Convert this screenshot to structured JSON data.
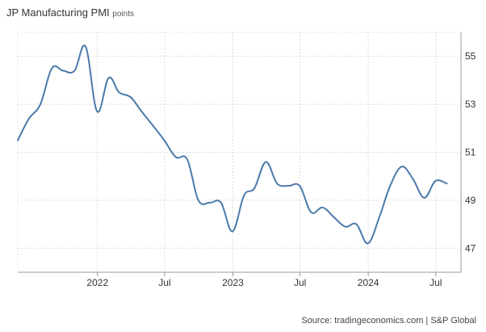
{
  "title": "JP Manufacturing PMI",
  "subtitle": "points",
  "source": "Source: tradingeconomics.com | S&P Global",
  "chart_data": {
    "type": "line",
    "title": "JP Manufacturing PMI",
    "ylabel": "points",
    "ylim": [
      46.0,
      56.0
    ],
    "yticks": [
      47,
      49,
      51,
      53,
      55
    ],
    "xrange": [
      "2021-05-31",
      "2024-09-07"
    ],
    "xticks": [
      {
        "date": "2022-01-01",
        "label": "2022"
      },
      {
        "date": "2022-07-01",
        "label": "Jul"
      },
      {
        "date": "2023-01-01",
        "label": "2023"
      },
      {
        "date": "2023-07-01",
        "label": "Jul"
      },
      {
        "date": "2024-01-01",
        "label": "2024"
      },
      {
        "date": "2024-07-01",
        "label": "Jul"
      }
    ],
    "grid": true,
    "line_color": "#4a7aab",
    "series": [
      {
        "values": [
          {
            "x": "2021-05-31",
            "y": 51.5
          },
          {
            "x": "2021-06-30",
            "y": 52.4
          },
          {
            "x": "2021-07-31",
            "y": 53.0
          },
          {
            "x": "2021-08-31",
            "y": 54.5
          },
          {
            "x": "2021-09-30",
            "y": 54.4
          },
          {
            "x": "2021-10-31",
            "y": 54.4
          },
          {
            "x": "2021-11-30",
            "y": 55.4
          },
          {
            "x": "2021-12-31",
            "y": 52.7
          },
          {
            "x": "2022-01-31",
            "y": 54.1
          },
          {
            "x": "2022-02-28",
            "y": 53.5
          },
          {
            "x": "2022-03-31",
            "y": 53.3
          },
          {
            "x": "2022-04-30",
            "y": 52.7
          },
          {
            "x": "2022-05-31",
            "y": 52.1
          },
          {
            "x": "2022-06-30",
            "y": 51.5
          },
          {
            "x": "2022-07-31",
            "y": 50.8
          },
          {
            "x": "2022-08-31",
            "y": 50.7
          },
          {
            "x": "2022-09-30",
            "y": 49.0
          },
          {
            "x": "2022-10-31",
            "y": 48.9
          },
          {
            "x": "2022-11-30",
            "y": 48.9
          },
          {
            "x": "2022-12-31",
            "y": 47.7
          },
          {
            "x": "2023-01-31",
            "y": 49.2
          },
          {
            "x": "2023-02-28",
            "y": 49.5
          },
          {
            "x": "2023-03-31",
            "y": 50.6
          },
          {
            "x": "2023-04-30",
            "y": 49.7
          },
          {
            "x": "2023-05-31",
            "y": 49.6
          },
          {
            "x": "2023-06-30",
            "y": 49.6
          },
          {
            "x": "2023-07-31",
            "y": 48.5
          },
          {
            "x": "2023-08-31",
            "y": 48.7
          },
          {
            "x": "2023-09-30",
            "y": 48.3
          },
          {
            "x": "2023-10-31",
            "y": 47.9
          },
          {
            "x": "2023-11-30",
            "y": 48.0
          },
          {
            "x": "2023-12-31",
            "y": 47.2
          },
          {
            "x": "2024-01-31",
            "y": 48.3
          },
          {
            "x": "2024-02-29",
            "y": 49.6
          },
          {
            "x": "2024-03-31",
            "y": 50.4
          },
          {
            "x": "2024-04-30",
            "y": 49.9
          },
          {
            "x": "2024-05-31",
            "y": 49.1
          },
          {
            "x": "2024-06-30",
            "y": 49.8
          },
          {
            "x": "2024-07-31",
            "y": 49.7
          }
        ]
      }
    ]
  }
}
